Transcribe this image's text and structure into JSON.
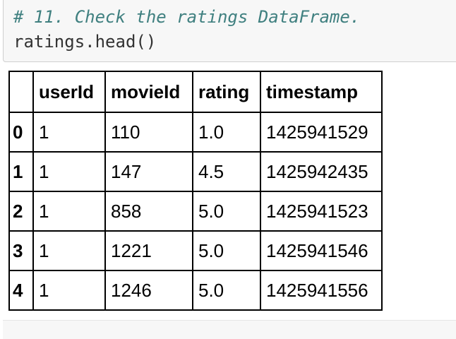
{
  "code_cell": {
    "comment": "# 11. Check the ratings DataFrame.",
    "statement": "ratings.head()"
  },
  "dataframe": {
    "columns": [
      "userId",
      "movieId",
      "rating",
      "timestamp"
    ],
    "rows": [
      {
        "index": "0",
        "userId": "1",
        "movieId": "110",
        "rating": "1.0",
        "timestamp": "1425941529"
      },
      {
        "index": "1",
        "userId": "1",
        "movieId": "147",
        "rating": "4.5",
        "timestamp": "1425942435"
      },
      {
        "index": "2",
        "userId": "1",
        "movieId": "858",
        "rating": "5.0",
        "timestamp": "1425941523"
      },
      {
        "index": "3",
        "userId": "1",
        "movieId": "1221",
        "rating": "5.0",
        "timestamp": "1425941546"
      },
      {
        "index": "4",
        "userId": "1",
        "movieId": "1246",
        "rating": "5.0",
        "timestamp": "1425941556"
      }
    ]
  }
}
